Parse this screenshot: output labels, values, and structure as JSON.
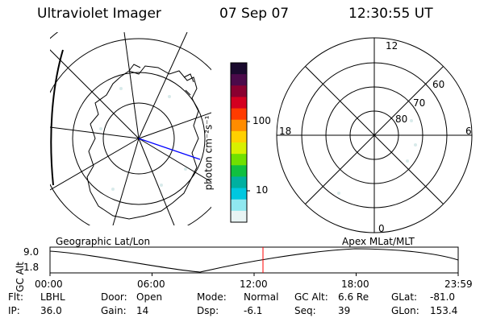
{
  "header": {
    "instrument": "Ultraviolet Imager",
    "date": "07 Sep 07",
    "time": "12:30:55 UT"
  },
  "left_map": {
    "caption": "Geographic Lat/Lon"
  },
  "colorbar": {
    "unit_label": "photon cm⁻²s⁻¹",
    "ticks": [
      "100",
      "10"
    ],
    "colors": [
      "#1a0a2e",
      "#4b0a4a",
      "#8a0030",
      "#d40020",
      "#ff3b00",
      "#ff8c00",
      "#ffd000",
      "#d8f000",
      "#70e000",
      "#10c040",
      "#00b0a0",
      "#00c8e0",
      "#90e8f0",
      "#e8f4f4"
    ]
  },
  "right_polar": {
    "caption": "Apex MLat/MLT",
    "mlt_labels": {
      "top": "12",
      "bottom": "0",
      "left": "18",
      "right": "6"
    },
    "lat_labels": [
      "60",
      "70",
      "80"
    ]
  },
  "altitude_plot": {
    "ylabel": "GC Alt",
    "yticks": [
      "9.0",
      "1.8"
    ],
    "xticks": [
      "00:00",
      "06:00",
      "12:00",
      "18:00",
      "23:59"
    ],
    "marker_time": "12:30:55",
    "marker_color": "#ff0000"
  },
  "info_rows": [
    [
      {
        "label": "Flt:",
        "value": "LBHL"
      },
      {
        "label": "Door:",
        "value": "Open"
      },
      {
        "label": "Mode:",
        "value": "Normal"
      },
      {
        "label": "GC Alt:",
        "value": "6.6 Re"
      },
      {
        "label": "GLat:",
        "value": "-81.0"
      }
    ],
    [
      {
        "label": "IP:",
        "value": "36.0"
      },
      {
        "label": "Gain:",
        "value": "14"
      },
      {
        "label": "Dsp:",
        "value": "-6.1"
      },
      {
        "label": "Seq:",
        "value": "39"
      },
      {
        "label": "GLon:",
        "value": "153.4"
      }
    ]
  ]
}
